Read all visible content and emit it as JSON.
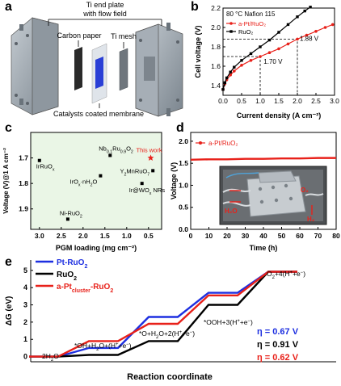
{
  "panel_letters": {
    "a": "a",
    "b": "b",
    "c": "c",
    "d": "d",
    "e": "e"
  },
  "panel_a": {
    "labels": {
      "end_plate": "Ti end plate",
      "flow_field": "with flow field",
      "carbon_paper": "Carbon paper",
      "ti_mesh": "Ti mesh",
      "membrane": "Catalysts coated membrane"
    },
    "colors": {
      "plate": "#9aa3ab",
      "membrane_catalyst": "#2a3fd6"
    }
  },
  "chart_data": [
    {
      "panel": "b",
      "type": "line",
      "title": "80 °C Nafion 115",
      "xlabel": "Current density (A cm⁻²)",
      "ylabel": "Cell voltage (V)",
      "xlim": [
        0,
        3.0
      ],
      "ylim": [
        1.3,
        2.2
      ],
      "xticks": [
        "0.0",
        "0.5",
        "1.0",
        "1.5",
        "2.0",
        "2.5",
        "3.0"
      ],
      "yticks": [
        "1.4",
        "1.6",
        "1.8",
        "2.0",
        "2.2"
      ],
      "legend_position": "top-left",
      "series": [
        {
          "name": "a-Pt/RuO₂",
          "color": "#e8211a",
          "x": [
            0.0,
            0.05,
            0.1,
            0.2,
            0.3,
            0.5,
            0.75,
            1.0,
            1.25,
            1.5,
            1.75,
            2.0,
            2.25,
            2.5,
            2.75,
            2.95
          ],
          "y": [
            1.36,
            1.42,
            1.46,
            1.51,
            1.55,
            1.61,
            1.66,
            1.7,
            1.74,
            1.78,
            1.83,
            1.88,
            1.92,
            1.96,
            2.0,
            2.03
          ]
        },
        {
          "name": "RuO₂",
          "color": "#000000",
          "x": [
            0.0,
            0.05,
            0.1,
            0.2,
            0.3,
            0.5,
            0.75,
            1.0,
            1.25,
            1.5,
            1.75,
            2.0,
            2.2,
            2.35
          ],
          "y": [
            1.36,
            1.43,
            1.48,
            1.54,
            1.59,
            1.66,
            1.73,
            1.8,
            1.87,
            1.95,
            2.03,
            2.11,
            2.17,
            2.21
          ]
        }
      ],
      "annotations": [
        {
          "text": "1.70 V",
          "x": 1.0,
          "y": 1.7
        },
        {
          "text": "1.88 V",
          "x": 2.0,
          "y": 1.88
        }
      ]
    },
    {
      "panel": "c",
      "type": "scatter",
      "xlabel": "PGM loading (mg cm⁻²)",
      "ylabel": "Voltage (V)@1 A cm⁻²",
      "xlim": [
        3.2,
        0.2
      ],
      "ylim": [
        1.98,
        1.6
      ],
      "xticks": [
        "3.0",
        "2.5",
        "2.0",
        "1.5",
        "1.0",
        "0.5"
      ],
      "yticks": [
        "1.7",
        "1.8",
        "1.9"
      ],
      "points": [
        {
          "label": "IrRuOx",
          "x": 3.0,
          "y": 1.71,
          "color": "#000000"
        },
        {
          "label": "Nb0.1Ru0.9O2",
          "x": 1.38,
          "y": 1.69,
          "color": "#000000"
        },
        {
          "label": "This work",
          "x": 0.45,
          "y": 1.7,
          "color": "#e8211a",
          "marker": "star"
        },
        {
          "label": "Y2MnRuO7",
          "x": 0.4,
          "y": 1.75,
          "color": "#000000"
        },
        {
          "label": "IrOx·nH2O",
          "x": 1.6,
          "y": 1.77,
          "color": "#000000"
        },
        {
          "label": "Ir@WOx NRs",
          "x": 0.65,
          "y": 1.8,
          "color": "#000000"
        },
        {
          "label": "Ni-RuO2",
          "x": 2.35,
          "y": 1.94,
          "color": "#000000"
        }
      ]
    },
    {
      "panel": "d",
      "type": "line",
      "xlabel": "Time (h)",
      "ylabel": "Voltage (V)",
      "xlim": [
        0,
        80
      ],
      "ylim": [
        0,
        2.2
      ],
      "xticks": [
        "0",
        "10",
        "20",
        "30",
        "40",
        "50",
        "60",
        "70",
        "80"
      ],
      "yticks": [
        "0.0",
        "0.5",
        "1.0",
        "1.5",
        "2.0"
      ],
      "legend_position": "top-left",
      "series": [
        {
          "name": "a-Pt/RuO₂",
          "color": "#e8211a",
          "x": [
            0,
            10,
            20,
            30,
            40,
            50,
            60,
            70,
            80
          ],
          "y": [
            1.58,
            1.59,
            1.59,
            1.6,
            1.6,
            1.61,
            1.61,
            1.62,
            1.62
          ]
        }
      ]
    },
    {
      "panel": "e",
      "type": "line",
      "subtype": "step-energy-diagram",
      "xlabel": "Reaction coordinate",
      "ylabel": "ΔG (eV)",
      "ylim": [
        -0.3,
        5.6
      ],
      "yticks": [
        "0",
        "1",
        "2",
        "3",
        "4",
        "5"
      ],
      "steps": [
        "2H₂O",
        "*OH+H₂O+(H⁺+e⁻)",
        "*O+H₂O+2(H⁺+e⁻)",
        "*OOH+3(H⁺+e⁻)",
        "O₂+4(H⁺+e⁻)"
      ],
      "legend_position": "top-left",
      "series": [
        {
          "name": "Pt-RuO2",
          "color": "#1d2fe0",
          "values": [
            0,
            0.5,
            2.3,
            3.7,
            4.92
          ]
        },
        {
          "name": "RuO2",
          "color": "#000000",
          "values": [
            0,
            0.1,
            0.9,
            3.0,
            4.92
          ]
        },
        {
          "name": "a-Pt_cluster-RuO2",
          "color": "#e8211a",
          "values": [
            0,
            0.9,
            1.9,
            3.55,
            4.92
          ]
        }
      ],
      "overpotentials": [
        {
          "text": "η = 0.67 V",
          "color": "#1d2fe0"
        },
        {
          "text": "η = 0.91 V",
          "color": "#000000"
        },
        {
          "text": "η = 0.62 V",
          "color": "#e8211a"
        }
      ]
    }
  ],
  "panel_d_inset": {
    "labels": {
      "h2o": "H₂O",
      "o2": "O₂",
      "h2": "H₂"
    },
    "colors": {
      "label": "#e8211a"
    }
  }
}
